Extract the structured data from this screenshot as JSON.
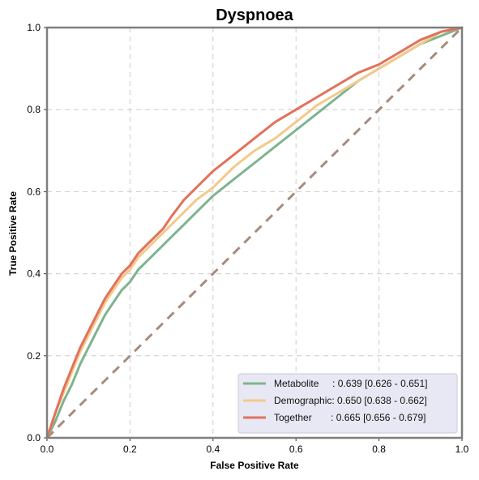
{
  "chart_data": {
    "type": "line",
    "title": "Dyspnoea",
    "xlabel": "False Positive Rate",
    "ylabel": "True Positive Rate",
    "xlim": [
      0.0,
      1.0
    ],
    "ylim": [
      0.0,
      1.0
    ],
    "xticks": [
      "0.0",
      "0.2",
      "0.4",
      "0.6",
      "0.8",
      "1.0"
    ],
    "yticks": [
      "0.0",
      "0.2",
      "0.4",
      "0.6",
      "0.8",
      "1.0"
    ],
    "grid": true,
    "legend_position": "bottom-right",
    "series": [
      {
        "name": "Metabolite",
        "label": "Metabolite     : 0.639 [0.626 - 0.651]",
        "color": "#7fb38f",
        "x": [
          0,
          0.01,
          0.02,
          0.04,
          0.06,
          0.08,
          0.1,
          0.12,
          0.14,
          0.16,
          0.18,
          0.2,
          0.22,
          0.25,
          0.28,
          0.3,
          0.33,
          0.36,
          0.4,
          0.45,
          0.5,
          0.55,
          0.6,
          0.65,
          0.7,
          0.75,
          0.8,
          0.85,
          0.9,
          0.95,
          1.0
        ],
        "y": [
          0,
          0.02,
          0.04,
          0.09,
          0.13,
          0.18,
          0.22,
          0.26,
          0.3,
          0.33,
          0.36,
          0.38,
          0.41,
          0.44,
          0.47,
          0.49,
          0.52,
          0.55,
          0.59,
          0.63,
          0.67,
          0.71,
          0.75,
          0.79,
          0.83,
          0.87,
          0.9,
          0.93,
          0.96,
          0.98,
          1.0
        ]
      },
      {
        "name": "Demographic",
        "label": "Demographic: 0.650 [0.638 - 0.662]",
        "color": "#f4c98a",
        "x": [
          0,
          0.01,
          0.02,
          0.04,
          0.06,
          0.08,
          0.1,
          0.12,
          0.14,
          0.16,
          0.18,
          0.2,
          0.22,
          0.25,
          0.28,
          0.3,
          0.33,
          0.36,
          0.4,
          0.45,
          0.5,
          0.55,
          0.6,
          0.65,
          0.7,
          0.75,
          0.8,
          0.85,
          0.9,
          0.95,
          1.0
        ],
        "y": [
          0,
          0.03,
          0.06,
          0.11,
          0.16,
          0.21,
          0.25,
          0.29,
          0.33,
          0.36,
          0.39,
          0.41,
          0.44,
          0.47,
          0.5,
          0.52,
          0.55,
          0.58,
          0.61,
          0.66,
          0.7,
          0.73,
          0.77,
          0.81,
          0.84,
          0.87,
          0.9,
          0.93,
          0.96,
          0.99,
          1.0
        ]
      },
      {
        "name": "Together",
        "label": "Together       : 0.665 [0.656 - 0.679]",
        "color": "#e2725b",
        "x": [
          0,
          0.01,
          0.02,
          0.04,
          0.06,
          0.08,
          0.1,
          0.12,
          0.14,
          0.16,
          0.18,
          0.2,
          0.22,
          0.25,
          0.28,
          0.3,
          0.33,
          0.36,
          0.4,
          0.45,
          0.5,
          0.55,
          0.6,
          0.65,
          0.7,
          0.75,
          0.8,
          0.85,
          0.9,
          0.95,
          1.0
        ],
        "y": [
          0,
          0.03,
          0.06,
          0.12,
          0.17,
          0.22,
          0.26,
          0.3,
          0.34,
          0.37,
          0.4,
          0.42,
          0.45,
          0.48,
          0.51,
          0.54,
          0.58,
          0.61,
          0.65,
          0.69,
          0.73,
          0.77,
          0.8,
          0.83,
          0.86,
          0.89,
          0.91,
          0.94,
          0.97,
          0.99,
          1.0
        ]
      }
    ],
    "reference_line": {
      "x": [
        0,
        1
      ],
      "y": [
        0,
        1
      ],
      "color": "#a88b7e",
      "style": "dashed"
    },
    "colors": {
      "grid": "#cccccc",
      "frame": "#7f7f7f",
      "legend_bg": "#e8e8f4",
      "legend_border": "#c8c8dc"
    }
  }
}
